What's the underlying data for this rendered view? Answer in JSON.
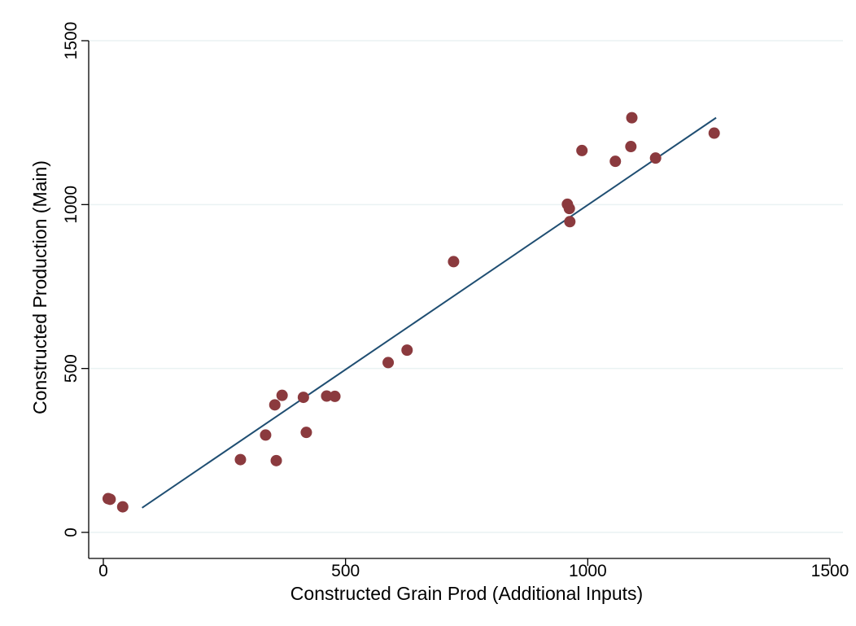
{
  "chart_data": {
    "type": "scatter",
    "title": "",
    "xlabel": "Constructed Grain Prod (Additional Inputs)",
    "ylabel": "Constructed Production (Main)",
    "xlim": [
      0,
      1500
    ],
    "ylim": [
      0,
      1500
    ],
    "x_ticks": [
      0,
      500,
      1000,
      1500
    ],
    "y_ticks": [
      0,
      500,
      1000,
      1500
    ],
    "x_tick_labels": [
      "0",
      "500",
      "1000",
      "1500"
    ],
    "y_tick_labels": [
      "0",
      "500",
      "1000",
      "1500"
    ],
    "grid": "horizontal",
    "legend": "none",
    "series": [
      {
        "type": "scatter",
        "color": "#8b3a3e",
        "points": [
          {
            "x": 10,
            "y": 103
          },
          {
            "x": 14,
            "y": 101
          },
          {
            "x": 40,
            "y": 78
          },
          {
            "x": 283,
            "y": 222
          },
          {
            "x": 335,
            "y": 297
          },
          {
            "x": 354,
            "y": 389
          },
          {
            "x": 357,
            "y": 219
          },
          {
            "x": 369,
            "y": 418
          },
          {
            "x": 413,
            "y": 412
          },
          {
            "x": 419,
            "y": 305
          },
          {
            "x": 461,
            "y": 416
          },
          {
            "x": 478,
            "y": 415
          },
          {
            "x": 588,
            "y": 518
          },
          {
            "x": 627,
            "y": 556
          },
          {
            "x": 723,
            "y": 826
          },
          {
            "x": 958,
            "y": 1001
          },
          {
            "x": 962,
            "y": 988
          },
          {
            "x": 963,
            "y": 948
          },
          {
            "x": 988,
            "y": 1165
          },
          {
            "x": 1057,
            "y": 1132
          },
          {
            "x": 1089,
            "y": 1177
          },
          {
            "x": 1091,
            "y": 1265
          },
          {
            "x": 1140,
            "y": 1142
          },
          {
            "x": 1261,
            "y": 1218
          }
        ]
      },
      {
        "type": "line",
        "color": "#1f4e72",
        "points": [
          {
            "x": 80,
            "y": 75
          },
          {
            "x": 1265,
            "y": 1265
          }
        ]
      }
    ]
  }
}
